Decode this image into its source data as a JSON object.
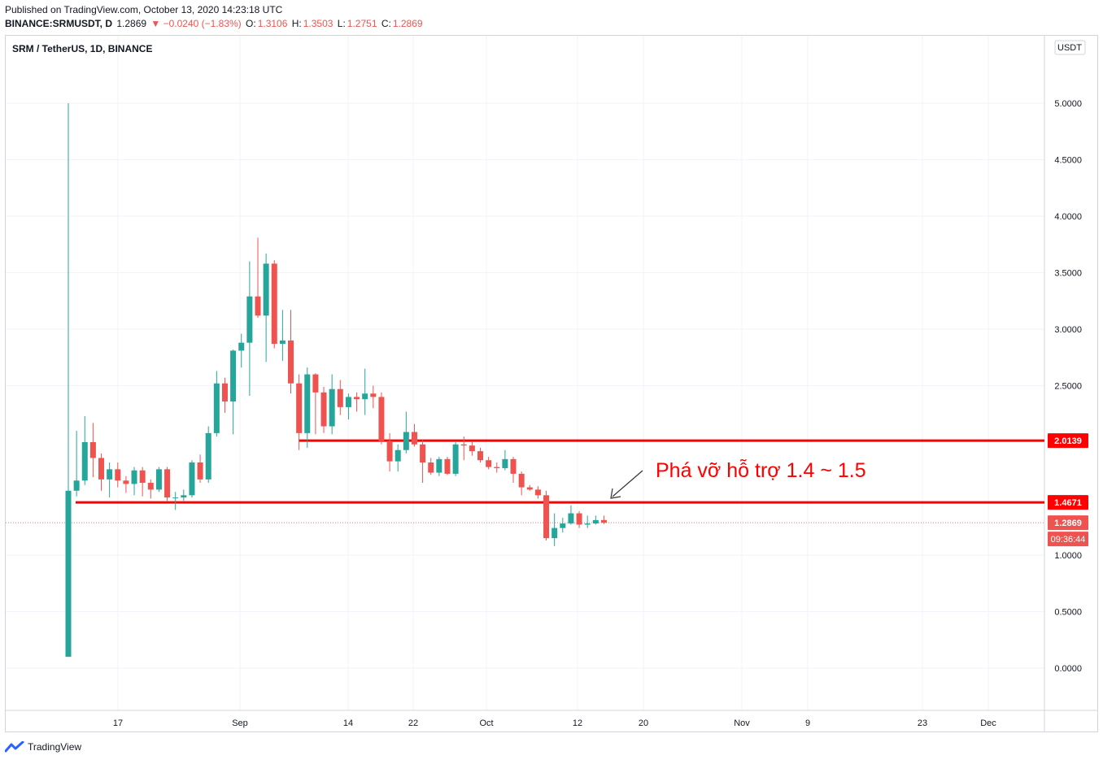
{
  "header": {
    "published": "Published on TradingView.com, October 13, 2020 14:23:18 UTC",
    "symbol": "BINANCE:SRMUSDT, D",
    "last": "1.2869",
    "change": "▼ −0.0240 (−1.83%)",
    "o_label": "O:",
    "o": "1.3106",
    "h_label": "H:",
    "h": "1.3503",
    "l_label": "L:",
    "l": "1.2751",
    "c_label": "C:",
    "c": "1.2869"
  },
  "legend": {
    "title": "SRM / TetherUS, 1D, BINANCE"
  },
  "footer": {
    "brand": "TradingView"
  },
  "colors": {
    "up": "#26a69a",
    "down": "#ef5350",
    "level": "#ff0000",
    "annotation": "#ff0000"
  },
  "chart_data": {
    "type": "candlestick",
    "currency": "USDT",
    "ylim": [
      -0.35,
      5.5
    ],
    "y_ticks": [
      "5.0000",
      "4.5000",
      "4.0000",
      "3.5000",
      "3.0000",
      "2.5000",
      "1.0000",
      "0.5000",
      "0.0000"
    ],
    "x_ticks": [
      "17",
      "Sep",
      "14",
      "22",
      "Oct",
      "12",
      "20",
      "Nov",
      "9",
      "23",
      "Dec"
    ],
    "grid": true,
    "price_labels": {
      "resistance": "2.0139",
      "support": "1.4671",
      "last": "1.2869",
      "countdown": "09:36:44"
    },
    "levels": [
      {
        "name": "resistance",
        "value": 2.0139
      },
      {
        "name": "support",
        "value": 1.4671
      }
    ],
    "annotation": "Phá vỡ hỗ trợ 1.4 ~ 1.5",
    "candles": [
      {
        "date": "2020-08-11",
        "o": 0.1,
        "h": 5.0,
        "l": 0.1,
        "c": 1.57
      },
      {
        "date": "2020-08-12",
        "o": 1.57,
        "h": 2.1,
        "l": 1.52,
        "c": 1.66
      },
      {
        "date": "2020-08-13",
        "o": 1.66,
        "h": 2.23,
        "l": 1.62,
        "c": 2.0
      },
      {
        "date": "2020-08-14",
        "o": 2.0,
        "h": 2.17,
        "l": 1.69,
        "c": 1.86
      },
      {
        "date": "2020-08-15",
        "o": 1.86,
        "h": 1.9,
        "l": 1.57,
        "c": 1.67
      },
      {
        "date": "2020-08-16",
        "o": 1.67,
        "h": 1.82,
        "l": 1.51,
        "c": 1.76
      },
      {
        "date": "2020-08-17",
        "o": 1.76,
        "h": 1.82,
        "l": 1.6,
        "c": 1.66
      },
      {
        "date": "2020-08-18",
        "o": 1.66,
        "h": 1.7,
        "l": 1.55,
        "c": 1.63
      },
      {
        "date": "2020-08-19",
        "o": 1.63,
        "h": 1.78,
        "l": 1.53,
        "c": 1.75
      },
      {
        "date": "2020-08-20",
        "o": 1.75,
        "h": 1.78,
        "l": 1.52,
        "c": 1.64
      },
      {
        "date": "2020-08-21",
        "o": 1.64,
        "h": 1.67,
        "l": 1.5,
        "c": 1.58
      },
      {
        "date": "2020-08-22",
        "o": 1.58,
        "h": 1.78,
        "l": 1.56,
        "c": 1.76
      },
      {
        "date": "2020-08-23",
        "o": 1.76,
        "h": 1.78,
        "l": 1.48,
        "c": 1.51
      },
      {
        "date": "2020-08-24",
        "o": 1.51,
        "h": 1.56,
        "l": 1.4,
        "c": 1.51
      },
      {
        "date": "2020-08-25",
        "o": 1.51,
        "h": 1.58,
        "l": 1.48,
        "c": 1.53
      },
      {
        "date": "2020-08-26",
        "o": 1.53,
        "h": 1.84,
        "l": 1.51,
        "c": 1.82
      },
      {
        "date": "2020-08-27",
        "o": 1.82,
        "h": 1.89,
        "l": 1.64,
        "c": 1.67
      },
      {
        "date": "2020-08-28",
        "o": 1.67,
        "h": 2.14,
        "l": 1.64,
        "c": 2.08
      },
      {
        "date": "2020-08-29",
        "o": 2.08,
        "h": 2.63,
        "l": 2.05,
        "c": 2.52
      },
      {
        "date": "2020-08-30",
        "o": 2.52,
        "h": 2.57,
        "l": 2.26,
        "c": 2.36
      },
      {
        "date": "2020-08-31",
        "o": 2.36,
        "h": 2.82,
        "l": 2.07,
        "c": 2.81
      },
      {
        "date": "2020-09-01",
        "o": 2.81,
        "h": 2.96,
        "l": 2.66,
        "c": 2.88
      },
      {
        "date": "2020-09-02",
        "o": 2.88,
        "h": 3.6,
        "l": 2.41,
        "c": 3.29
      },
      {
        "date": "2020-09-03",
        "o": 3.29,
        "h": 3.81,
        "l": 3.1,
        "c": 3.12
      },
      {
        "date": "2020-09-04",
        "o": 3.12,
        "h": 3.67,
        "l": 2.71,
        "c": 3.58
      },
      {
        "date": "2020-09-05",
        "o": 3.58,
        "h": 3.61,
        "l": 2.83,
        "c": 2.87
      },
      {
        "date": "2020-09-06",
        "o": 2.87,
        "h": 3.17,
        "l": 2.72,
        "c": 2.9
      },
      {
        "date": "2020-09-07",
        "o": 2.9,
        "h": 3.17,
        "l": 2.43,
        "c": 2.52
      },
      {
        "date": "2020-09-08",
        "o": 2.52,
        "h": 2.6,
        "l": 1.93,
        "c": 2.08
      },
      {
        "date": "2020-09-09",
        "o": 2.08,
        "h": 2.66,
        "l": 1.95,
        "c": 2.6
      },
      {
        "date": "2020-09-10",
        "o": 2.6,
        "h": 2.61,
        "l": 2.07,
        "c": 2.44
      },
      {
        "date": "2020-09-11",
        "o": 2.44,
        "h": 2.49,
        "l": 2.08,
        "c": 2.14
      },
      {
        "date": "2020-09-12",
        "o": 2.14,
        "h": 2.6,
        "l": 2.07,
        "c": 2.47
      },
      {
        "date": "2020-09-13",
        "o": 2.47,
        "h": 2.55,
        "l": 2.24,
        "c": 2.31
      },
      {
        "date": "2020-09-14",
        "o": 2.31,
        "h": 2.43,
        "l": 2.2,
        "c": 2.4
      },
      {
        "date": "2020-09-15",
        "o": 2.4,
        "h": 2.44,
        "l": 2.27,
        "c": 2.38
      },
      {
        "date": "2020-09-16",
        "o": 2.38,
        "h": 2.65,
        "l": 2.24,
        "c": 2.43
      },
      {
        "date": "2020-09-17",
        "o": 2.43,
        "h": 2.5,
        "l": 2.3,
        "c": 2.4
      },
      {
        "date": "2020-09-18",
        "o": 2.4,
        "h": 2.44,
        "l": 1.98,
        "c": 2.01
      },
      {
        "date": "2020-09-19",
        "o": 2.01,
        "h": 2.08,
        "l": 1.74,
        "c": 1.83
      },
      {
        "date": "2020-09-20",
        "o": 1.83,
        "h": 1.98,
        "l": 1.74,
        "c": 1.93
      },
      {
        "date": "2020-09-21",
        "o": 1.93,
        "h": 2.27,
        "l": 1.9,
        "c": 2.09
      },
      {
        "date": "2020-09-22",
        "o": 2.09,
        "h": 2.16,
        "l": 1.96,
        "c": 1.98
      },
      {
        "date": "2020-09-23",
        "o": 1.98,
        "h": 2.02,
        "l": 1.64,
        "c": 1.82
      },
      {
        "date": "2020-09-24",
        "o": 1.82,
        "h": 1.86,
        "l": 1.71,
        "c": 1.73
      },
      {
        "date": "2020-09-25",
        "o": 1.73,
        "h": 1.87,
        "l": 1.7,
        "c": 1.85
      },
      {
        "date": "2020-09-26",
        "o": 1.85,
        "h": 1.87,
        "l": 1.71,
        "c": 1.72
      },
      {
        "date": "2020-09-27",
        "o": 1.72,
        "h": 2.01,
        "l": 1.7,
        "c": 1.98
      },
      {
        "date": "2020-09-28",
        "o": 1.98,
        "h": 2.05,
        "l": 1.84,
        "c": 1.97
      },
      {
        "date": "2020-09-29",
        "o": 1.97,
        "h": 2.0,
        "l": 1.88,
        "c": 1.92
      },
      {
        "date": "2020-09-30",
        "o": 1.92,
        "h": 1.95,
        "l": 1.82,
        "c": 1.84
      },
      {
        "date": "2020-10-01",
        "o": 1.84,
        "h": 1.87,
        "l": 1.76,
        "c": 1.78
      },
      {
        "date": "2020-10-02",
        "o": 1.78,
        "h": 1.82,
        "l": 1.73,
        "c": 1.77
      },
      {
        "date": "2020-10-03",
        "o": 1.77,
        "h": 1.93,
        "l": 1.75,
        "c": 1.85
      },
      {
        "date": "2020-10-04",
        "o": 1.85,
        "h": 1.87,
        "l": 1.64,
        "c": 1.72
      },
      {
        "date": "2020-10-05",
        "o": 1.72,
        "h": 1.74,
        "l": 1.53,
        "c": 1.6
      },
      {
        "date": "2020-10-06",
        "o": 1.6,
        "h": 1.62,
        "l": 1.57,
        "c": 1.58
      },
      {
        "date": "2020-10-07",
        "o": 1.58,
        "h": 1.61,
        "l": 1.5,
        "c": 1.53
      },
      {
        "date": "2020-10-08",
        "o": 1.53,
        "h": 1.57,
        "l": 1.13,
        "c": 1.15
      },
      {
        "date": "2020-10-09",
        "o": 1.15,
        "h": 1.37,
        "l": 1.08,
        "c": 1.24
      },
      {
        "date": "2020-10-10",
        "o": 1.24,
        "h": 1.33,
        "l": 1.2,
        "c": 1.28
      },
      {
        "date": "2020-10-11",
        "o": 1.28,
        "h": 1.44,
        "l": 1.27,
        "c": 1.37
      },
      {
        "date": "2020-10-12",
        "o": 1.37,
        "h": 1.39,
        "l": 1.24,
        "c": 1.27
      },
      {
        "date": "2020-10-13",
        "o": 1.27,
        "h": 1.35,
        "l": 1.24,
        "c": 1.28
      },
      {
        "date": "2020-10-14",
        "o": 1.28,
        "h": 1.35,
        "l": 1.27,
        "c": 1.31
      },
      {
        "date": "2020-10-15",
        "o": 1.3106,
        "h": 1.3503,
        "l": 1.2751,
        "c": 1.2869
      }
    ]
  }
}
